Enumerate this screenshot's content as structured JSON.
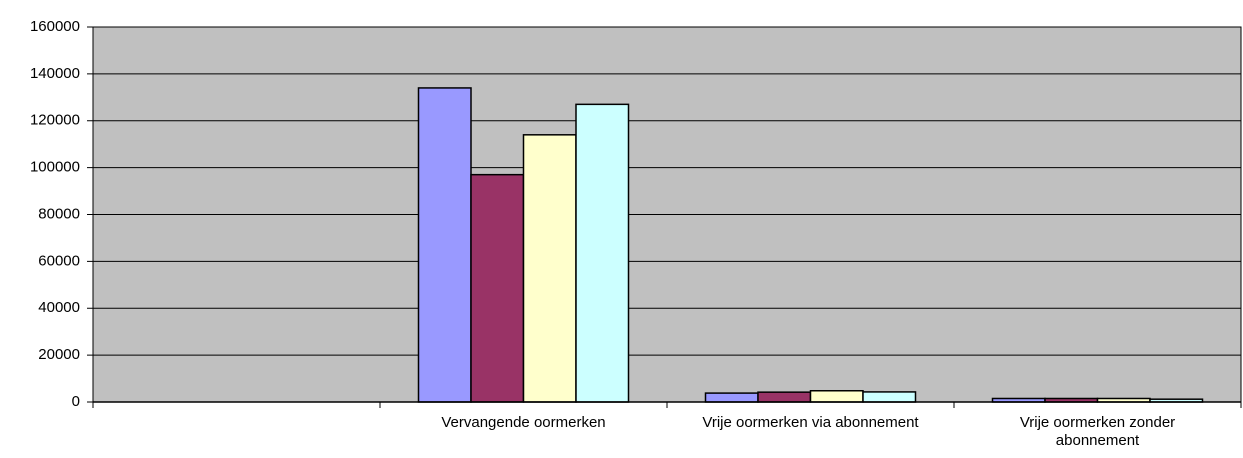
{
  "chart_data": {
    "type": "bar",
    "categories": [
      null,
      "Vervangende oormerken",
      "Vrije oormerken via abonnement",
      "Vrije oormerken zonder abonnement"
    ],
    "series": [
      {
        "color": "#9999ff",
        "values": [
          null,
          134000,
          3800,
          1500
        ]
      },
      {
        "color": "#993366",
        "values": [
          null,
          97000,
          4200,
          1500
        ]
      },
      {
        "color": "#ffffcc",
        "values": [
          null,
          114000,
          4800,
          1500
        ]
      },
      {
        "color": "#ccffff",
        "values": [
          null,
          127000,
          4300,
          1200
        ]
      }
    ],
    "ylim": [
      0,
      160000
    ],
    "yticks": [
      0,
      20000,
      40000,
      60000,
      80000,
      100000,
      120000,
      140000,
      160000
    ],
    "grid": true
  }
}
